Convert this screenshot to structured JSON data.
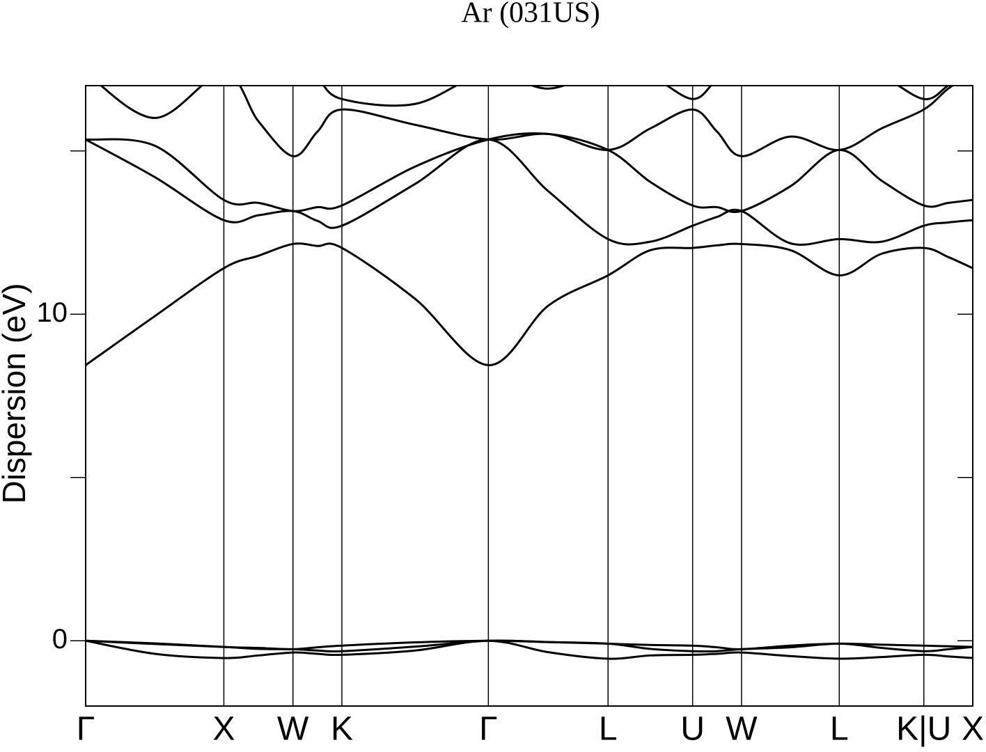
{
  "chart_data": {
    "type": "line",
    "title": "Ar (031US)",
    "y_label": "Dispersion (eV)",
    "x": [
      0,
      0.5,
      1,
      1.25,
      1.5,
      1.677,
      1.854,
      2.384,
      2.914,
      3.347,
      3.78,
      4.086,
      4.392,
      4.569,
      4.746,
      5.1,
      5.453,
      5.759,
      6.065,
      6.242,
      6.419
    ],
    "xlim": [
      0,
      6.419
    ],
    "xticks": [
      {
        "value": 0,
        "label": "Γ"
      },
      {
        "value": 1,
        "label": "X"
      },
      {
        "value": 1.5,
        "label": "W"
      },
      {
        "value": 1.854,
        "label": "K"
      },
      {
        "value": 2.914,
        "label": "Γ"
      },
      {
        "value": 3.78,
        "label": "L"
      },
      {
        "value": 4.392,
        "label": "U"
      },
      {
        "value": 4.746,
        "label": "W"
      },
      {
        "value": 5.453,
        "label": "L"
      },
      {
        "value": 6.065,
        "label": "K|U"
      },
      {
        "value": 6.419,
        "label": "X"
      }
    ],
    "ylim": [
      -2,
      17
    ],
    "yticks": [
      0,
      10
    ],
    "yminorticks": [
      5,
      15
    ],
    "grid": true,
    "series": [
      {
        "color": "#000000",
        "values": [
          0,
          -0.4,
          -0.53,
          -0.45,
          -0.36,
          -0.4,
          -0.43,
          -0.3,
          0,
          -0.35,
          -0.55,
          -0.45,
          -0.43,
          -0.4,
          -0.36,
          -0.47,
          -0.55,
          -0.5,
          -0.43,
          -0.48,
          -0.53
        ]
      },
      {
        "color": "#000000",
        "values": [
          0,
          -0.1,
          -0.19,
          -0.25,
          -0.26,
          -0.3,
          -0.32,
          -0.18,
          0,
          -0.04,
          -0.09,
          -0.25,
          -0.32,
          -0.32,
          -0.26,
          -0.2,
          -0.09,
          -0.22,
          -0.32,
          -0.26,
          -0.19
        ]
      },
      {
        "color": "#000000",
        "values": [
          0,
          -0.08,
          -0.19,
          -0.22,
          -0.26,
          -0.2,
          -0.15,
          -0.05,
          0,
          -0.04,
          -0.09,
          -0.13,
          -0.15,
          -0.2,
          -0.26,
          -0.15,
          -0.09,
          -0.12,
          -0.15,
          -0.17,
          -0.19
        ]
      },
      {
        "color": "#000000",
        "values": [
          8.44,
          9.94,
          11.41,
          11.79,
          12.15,
          12.09,
          12.03,
          10.47,
          8.44,
          10.26,
          11.19,
          11.96,
          12.03,
          12.11,
          12.15,
          11.96,
          11.19,
          11.85,
          12.03,
          11.75,
          11.41
        ]
      },
      {
        "color": "#000000",
        "values": [
          15.35,
          14.2,
          12.88,
          13.03,
          13.16,
          12.86,
          12.71,
          13.99,
          15.35,
          13.77,
          12.3,
          12.22,
          12.71,
          12.98,
          13.16,
          12.17,
          12.3,
          12.22,
          12.71,
          12.81,
          12.88
        ]
      },
      {
        "color": "#000000",
        "values": [
          15.35,
          15.16,
          13.5,
          13.41,
          13.16,
          13.28,
          13.33,
          14.52,
          15.35,
          15.52,
          15.03,
          14.05,
          13.33,
          13.28,
          13.16,
          13.92,
          15.03,
          14.09,
          13.33,
          13.41,
          13.5
        ]
      },
      {
        "color": "#000000",
        "values": [
          17.4,
          16.01,
          17.4,
          15.91,
          14.84,
          15.59,
          16.27,
          15.8,
          15.35,
          15.52,
          15.03,
          15.69,
          16.27,
          15.59,
          14.84,
          15.44,
          15.03,
          15.69,
          16.27,
          16.91,
          17.4
        ]
      },
      {
        "color": "#000000",
        "values": [
          17.8,
          17.5,
          17.6,
          17.5,
          17.6,
          17.2,
          16.59,
          16.44,
          17.4,
          16.91,
          17.5,
          17.29,
          16.59,
          17.19,
          17.6,
          17.4,
          17.6,
          17.29,
          16.59,
          17.01,
          17.6
        ]
      }
    ]
  }
}
